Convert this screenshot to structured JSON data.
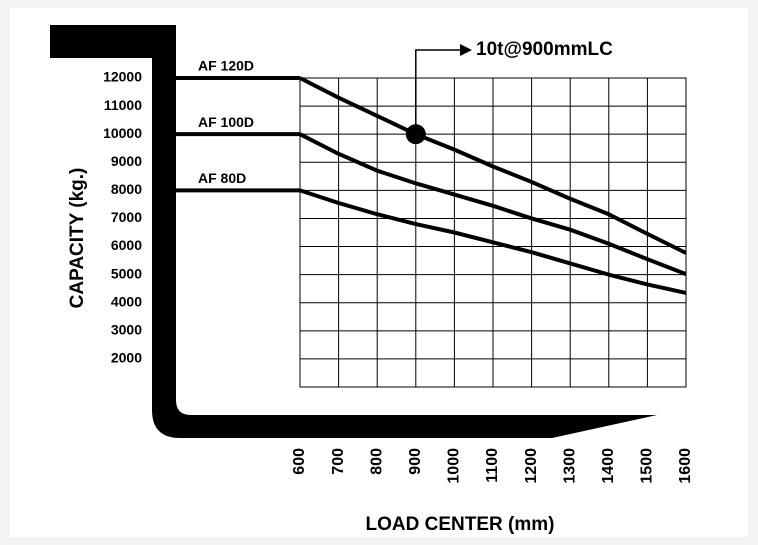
{
  "chart_data": {
    "type": "line",
    "x_label": "LOAD CENTER (mm)",
    "y_label": "CAPACITY (kg.)",
    "x": [
      600,
      700,
      800,
      900,
      1000,
      1100,
      1200,
      1300,
      1400,
      1500,
      1600
    ],
    "series": [
      {
        "name": "AF 120D",
        "color": "#000000",
        "values": [
          12000,
          11300,
          10650,
          10000,
          9450,
          8850,
          8300,
          7700,
          7150,
          6450,
          5770
        ]
      },
      {
        "name": "AF 100D",
        "color": "#000000",
        "values": [
          10000,
          9300,
          8700,
          8250,
          7850,
          7450,
          7000,
          6600,
          6100,
          5550,
          5020
        ]
      },
      {
        "name": "AF 80D",
        "color": "#000000",
        "values": [
          8000,
          7550,
          7150,
          6800,
          6500,
          6150,
          5800,
          5400,
          5000,
          4650,
          4350
        ]
      }
    ],
    "annotations": [
      {
        "text": "10t@900mmLC",
        "x": 900,
        "y": 10000
      }
    ],
    "xlim": [
      600,
      1600
    ],
    "xticks": [
      600,
      700,
      800,
      900,
      1000,
      1100,
      1200,
      1300,
      1400,
      1500,
      1600
    ],
    "ylim": [
      1000,
      12000
    ],
    "yticks": [
      2000,
      3000,
      4000,
      5000,
      6000,
      7000,
      8000,
      9000,
      10000,
      11000,
      12000
    ],
    "grid": true
  }
}
